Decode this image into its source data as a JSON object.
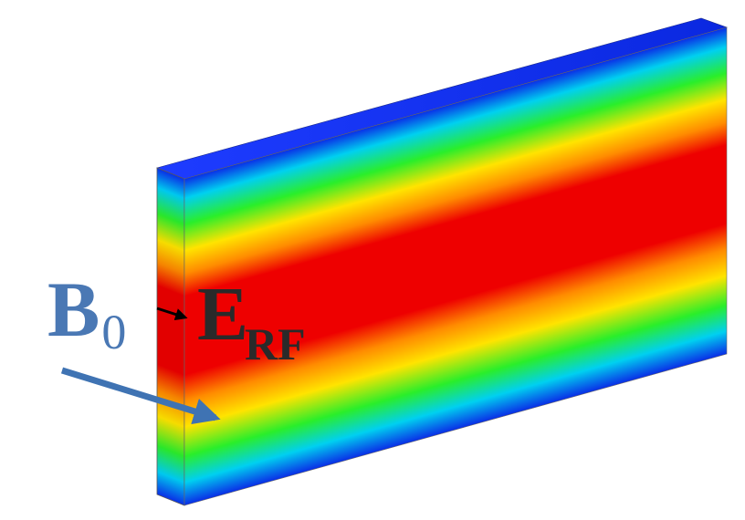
{
  "labels": {
    "b0_main": "B",
    "b0_sub": "0",
    "erf_main": "E",
    "erf_sub": "RF"
  },
  "colors": {
    "b0_label": "#4a78b4",
    "b0_arrow": "#3f73b3",
    "erf_label": "#2a2a2a",
    "erf_arrow": "#000000",
    "field_blue": "#0a2ee6",
    "field_cyan": "#00d0f0",
    "field_green": "#2aee2a",
    "field_yellow": "#ffe400",
    "field_orange": "#ff8c00",
    "field_red": "#ee0000"
  }
}
